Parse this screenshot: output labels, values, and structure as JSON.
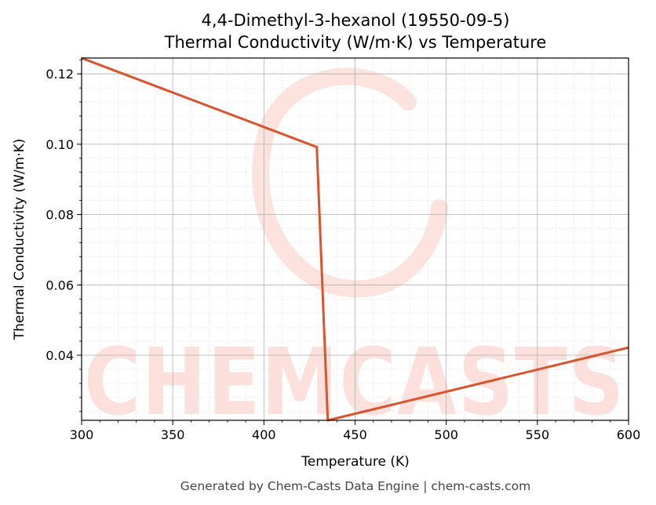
{
  "chart_data": {
    "type": "line",
    "title_line1": "4,4-Dimethyl-3-hexanol (19550-09-5)",
    "title_line2": "Thermal Conductivity (W/m·K) vs Temperature",
    "xlabel": "Temperature (K)",
    "ylabel": "Thermal Conductivity (W/m·K)",
    "xlim": [
      300,
      600
    ],
    "ylim": [
      0.0215,
      0.1245
    ],
    "x_ticks": [
      300,
      350,
      400,
      450,
      500,
      550,
      600
    ],
    "y_ticks": [
      0.04,
      0.06,
      0.08,
      0.1,
      0.12
    ],
    "y_tick_labels": [
      "0.04",
      "0.06",
      "0.08",
      "0.10",
      "0.12"
    ],
    "x_tick_labels": [
      "300",
      "350",
      "400",
      "450",
      "500",
      "550",
      "600"
    ],
    "grid": true,
    "line_color": "#d9532b",
    "series": [
      {
        "x": [
          300,
          429,
          435,
          600
        ],
        "y": [
          0.1245,
          0.0992,
          0.0215,
          0.0422
        ]
      }
    ],
    "watermark": "CHEMCASTS",
    "footer": "Generated by Chem-Casts Data Engine | chem-casts.com"
  }
}
